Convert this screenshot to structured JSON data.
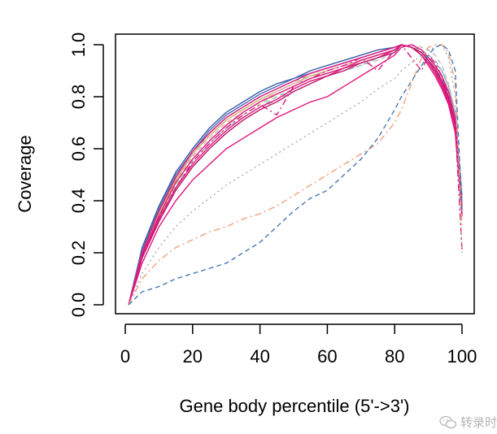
{
  "chart_data": {
    "type": "line",
    "title": "",
    "xlabel": "Gene body percentile (5'->3')",
    "ylabel": "Coverage",
    "xlim": [
      0,
      100
    ],
    "ylim": [
      0,
      1
    ],
    "xticks": [
      "0",
      "20",
      "40",
      "60",
      "80",
      "100"
    ],
    "yticks": [
      "0.0",
      "0.2",
      "0.4",
      "0.6",
      "0.8",
      "1.0"
    ],
    "grid": false,
    "legend": "none",
    "x": [
      1,
      5,
      10,
      15,
      20,
      25,
      30,
      35,
      40,
      45,
      50,
      55,
      60,
      65,
      70,
      75,
      80,
      82,
      85,
      88,
      90,
      92,
      94,
      96,
      98,
      100
    ],
    "series": [
      {
        "color": "#3a5ba8",
        "dash": "solid",
        "values": [
          0,
          0.22,
          0.38,
          0.51,
          0.6,
          0.68,
          0.74,
          0.78,
          0.82,
          0.85,
          0.87,
          0.9,
          0.92,
          0.94,
          0.96,
          0.98,
          0.99,
          1.0,
          0.99,
          0.96,
          0.93,
          0.9,
          0.86,
          0.8,
          0.7,
          0.4
        ]
      },
      {
        "color": "#4a6fb3",
        "dash": "solid",
        "values": [
          0,
          0.21,
          0.37,
          0.5,
          0.59,
          0.67,
          0.73,
          0.77,
          0.81,
          0.84,
          0.87,
          0.89,
          0.91,
          0.93,
          0.95,
          0.97,
          0.99,
          1.0,
          0.99,
          0.97,
          0.94,
          0.91,
          0.87,
          0.81,
          0.72,
          0.42
        ]
      },
      {
        "color": "#9aa3c4",
        "dash": "dashed",
        "values": [
          0,
          0.2,
          0.36,
          0.48,
          0.58,
          0.66,
          0.72,
          0.76,
          0.8,
          0.83,
          0.86,
          0.88,
          0.9,
          0.92,
          0.94,
          0.96,
          0.98,
          1.0,
          0.99,
          0.97,
          0.95,
          0.93,
          0.9,
          0.84,
          0.74,
          0.44
        ]
      },
      {
        "color": "#c9b26a",
        "dash": "solid",
        "values": [
          0,
          0.2,
          0.35,
          0.48,
          0.58,
          0.65,
          0.71,
          0.75,
          0.79,
          0.82,
          0.85,
          0.88,
          0.9,
          0.92,
          0.94,
          0.96,
          0.98,
          1.0,
          0.99,
          0.96,
          0.93,
          0.9,
          0.86,
          0.8,
          0.7,
          0.38
        ]
      },
      {
        "color": "#a7c98a",
        "dash": "dashed",
        "values": [
          0,
          0.19,
          0.34,
          0.46,
          0.56,
          0.63,
          0.69,
          0.73,
          0.77,
          0.81,
          0.84,
          0.87,
          0.89,
          0.91,
          0.93,
          0.95,
          0.97,
          1.0,
          0.99,
          0.97,
          0.95,
          0.92,
          0.88,
          0.82,
          0.72,
          0.4
        ]
      },
      {
        "color": "#8bbdb3",
        "dash": "dashed",
        "values": [
          0,
          0.18,
          0.33,
          0.45,
          0.55,
          0.62,
          0.68,
          0.72,
          0.76,
          0.8,
          0.83,
          0.86,
          0.88,
          0.9,
          0.92,
          0.95,
          0.97,
          1.0,
          0.99,
          0.98,
          0.96,
          0.94,
          0.9,
          0.84,
          0.73,
          0.41
        ]
      },
      {
        "color": "#bcbcbc",
        "dash": "dashed",
        "values": [
          0,
          0.18,
          0.32,
          0.44,
          0.53,
          0.6,
          0.66,
          0.71,
          0.75,
          0.79,
          0.82,
          0.85,
          0.88,
          0.9,
          0.92,
          0.94,
          0.97,
          0.99,
          1.0,
          0.99,
          0.98,
          0.96,
          0.92,
          0.85,
          0.74,
          0.36
        ]
      },
      {
        "color": "#e8a9c4",
        "dash": "dashed",
        "values": [
          0,
          0.19,
          0.34,
          0.47,
          0.57,
          0.64,
          0.7,
          0.74,
          0.78,
          0.82,
          0.85,
          0.87,
          0.9,
          0.92,
          0.94,
          0.96,
          0.98,
          1.0,
          0.99,
          0.97,
          0.94,
          0.91,
          0.87,
          0.81,
          0.71,
          0.39
        ]
      },
      {
        "color": "#e0177f",
        "dash": "solid",
        "values": [
          0,
          0.2,
          0.36,
          0.49,
          0.59,
          0.66,
          0.72,
          0.76,
          0.8,
          0.83,
          0.86,
          0.89,
          0.91,
          0.93,
          0.95,
          0.97,
          0.99,
          1.0,
          0.99,
          0.96,
          0.92,
          0.88,
          0.83,
          0.77,
          0.66,
          0.34
        ]
      },
      {
        "color": "#d81b7a",
        "dash": "solid",
        "values": [
          0,
          0.19,
          0.34,
          0.47,
          0.56,
          0.63,
          0.69,
          0.74,
          0.78,
          0.81,
          0.84,
          0.87,
          0.89,
          0.91,
          0.94,
          0.96,
          0.98,
          1.0,
          0.99,
          0.96,
          0.93,
          0.89,
          0.84,
          0.78,
          0.68,
          0.36
        ]
      },
      {
        "color": "#e0177f",
        "dash": "solid",
        "values": [
          0,
          0.18,
          0.33,
          0.45,
          0.54,
          0.61,
          0.67,
          0.72,
          0.76,
          0.79,
          0.83,
          0.86,
          0.88,
          0.91,
          0.93,
          0.95,
          0.98,
          1.0,
          0.99,
          0.97,
          0.94,
          0.9,
          0.85,
          0.79,
          0.69,
          0.37
        ]
      },
      {
        "color": "#c2186b",
        "dash": "solid",
        "values": [
          0,
          0.18,
          0.32,
          0.44,
          0.53,
          0.6,
          0.66,
          0.71,
          0.75,
          0.78,
          0.82,
          0.85,
          0.88,
          0.9,
          0.93,
          0.95,
          0.97,
          1.0,
          0.99,
          0.97,
          0.94,
          0.91,
          0.86,
          0.8,
          0.7,
          0.38
        ]
      },
      {
        "color": "#e0177f",
        "dash": "solid",
        "values": [
          0,
          0.16,
          0.3,
          0.4,
          0.48,
          0.54,
          0.6,
          0.64,
          0.68,
          0.72,
          0.75,
          0.78,
          0.8,
          0.84,
          0.88,
          0.92,
          0.96,
          0.99,
          1.0,
          0.98,
          0.95,
          0.92,
          0.88,
          0.82,
          0.72,
          0.35
        ]
      },
      {
        "color": "#e0177f",
        "dash": "dashdot",
        "values": [
          0,
          0.18,
          0.33,
          0.45,
          0.55,
          0.62,
          0.68,
          0.73,
          0.77,
          0.73,
          0.84,
          0.87,
          0.9,
          0.92,
          0.95,
          0.9,
          0.98,
          1.0,
          0.95,
          0.9,
          0.96,
          0.93,
          0.88,
          0.8,
          0.68,
          0.21
        ]
      },
      {
        "color": "#aaaaaa",
        "dash": "dotted",
        "values": [
          0,
          0.12,
          0.22,
          0.3,
          0.36,
          0.41,
          0.46,
          0.5,
          0.54,
          0.58,
          0.62,
          0.66,
          0.7,
          0.74,
          0.78,
          0.83,
          0.87,
          0.9,
          0.93,
          0.96,
          0.98,
          0.99,
          1.0,
          0.95,
          0.8,
          0.2
        ]
      },
      {
        "color": "#f2a07a",
        "dash": "dashdot",
        "values": [
          0,
          0.1,
          0.17,
          0.22,
          0.25,
          0.28,
          0.3,
          0.33,
          0.35,
          0.38,
          0.42,
          0.46,
          0.5,
          0.54,
          0.58,
          0.62,
          0.7,
          0.75,
          0.85,
          0.95,
          0.99,
          1.0,
          1.0,
          0.97,
          0.85,
          0.3
        ]
      },
      {
        "color": "#4a78b3",
        "dash": "dashed",
        "values": [
          0,
          0.05,
          0.07,
          0.1,
          0.12,
          0.14,
          0.16,
          0.2,
          0.24,
          0.3,
          0.36,
          0.41,
          0.44,
          0.5,
          0.56,
          0.64,
          0.75,
          0.8,
          0.86,
          0.92,
          0.96,
          0.99,
          1.0,
          0.98,
          0.9,
          0.36
        ]
      }
    ]
  },
  "watermark": {
    "text": "转录时"
  }
}
